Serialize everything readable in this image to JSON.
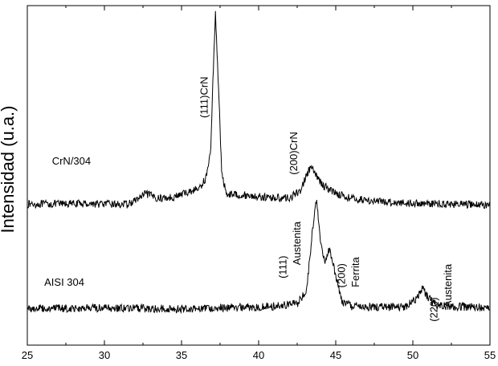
{
  "chart_data": {
    "type": "line",
    "title": "",
    "xlabel": "",
    "ylabel": "Intensidad (u.a.)",
    "xlim": [
      25,
      55
    ],
    "ylim": [
      0,
      100
    ],
    "x_ticks": [
      25,
      30,
      35,
      40,
      45,
      50,
      55
    ],
    "x_tick_labels": [
      "25",
      "30",
      "35",
      "40",
      "45",
      "50",
      "55"
    ],
    "y_ticks_labeled": false,
    "grid": false,
    "legend": "none",
    "line_color": "#000000",
    "series": [
      {
        "name": "CrN/304",
        "label_at": [
          26.6,
          53.2
        ],
        "points": [
          [
            25,
            41.5
          ],
          [
            29,
            41.7
          ],
          [
            31.5,
            41.4
          ],
          [
            32,
            42.6
          ],
          [
            32.7,
            44.6
          ],
          [
            33.5,
            43.2
          ],
          [
            34.5,
            43.6
          ],
          [
            35.5,
            45.2
          ],
          [
            36.2,
            46.3
          ],
          [
            36.6,
            49.5
          ],
          [
            36.9,
            57.5
          ],
          [
            37.05,
            80
          ],
          [
            37.2,
            98
          ],
          [
            37.4,
            76
          ],
          [
            37.6,
            51
          ],
          [
            37.9,
            44.6
          ],
          [
            39,
            44.2
          ],
          [
            40.5,
            43.5
          ],
          [
            42,
            43.3
          ],
          [
            42.7,
            45.5
          ],
          [
            43.1,
            50
          ],
          [
            43.4,
            52.5
          ],
          [
            43.7,
            50
          ],
          [
            44.2,
            47
          ],
          [
            45,
            44.8
          ],
          [
            46,
            43.2
          ],
          [
            47,
            42.7
          ],
          [
            48,
            42.2
          ],
          [
            50,
            41.8
          ],
          [
            52,
            41.6
          ],
          [
            55,
            41.3
          ]
        ],
        "noise": 0.7
      },
      {
        "name": "AISI 304",
        "label_at": [
          26.1,
          17.5
        ],
        "points": [
          [
            25,
            10.8
          ],
          [
            30,
            10.9
          ],
          [
            35,
            10.7
          ],
          [
            38,
            11.1
          ],
          [
            41,
            11.4
          ],
          [
            42.5,
            12.2
          ],
          [
            43.1,
            16
          ],
          [
            43.5,
            34
          ],
          [
            43.75,
            43
          ],
          [
            44.0,
            31.5
          ],
          [
            44.3,
            24
          ],
          [
            44.6,
            28.5
          ],
          [
            44.9,
            22.5
          ],
          [
            45.4,
            12.8
          ],
          [
            46,
            11.5
          ],
          [
            47.5,
            11.2
          ],
          [
            49.5,
            11.4
          ],
          [
            50.2,
            13.4
          ],
          [
            50.6,
            16.8
          ],
          [
            51.0,
            13.8
          ],
          [
            51.6,
            11.6
          ],
          [
            53,
            11.3
          ],
          [
            55,
            11.1
          ]
        ],
        "noise": 0.75
      }
    ],
    "annotations": [
      {
        "text": "(111)CrN",
        "x": 36.7,
        "y": 73,
        "rotate": -90
      },
      {
        "text": "(200)CrN",
        "x": 42.5,
        "y": 56.5,
        "rotate": -90
      },
      {
        "text": "(111)",
        "x": 41.8,
        "y": 23,
        "rotate": -90
      },
      {
        "text": "Austenita",
        "x": 42.7,
        "y": 30,
        "rotate": -90
      },
      {
        "text": "(200)",
        "x": 45.6,
        "y": 20.5,
        "rotate": -90
      },
      {
        "text": "Ferrita",
        "x": 46.5,
        "y": 21.5,
        "rotate": -90
      },
      {
        "text": "(220)",
        "x": 51.6,
        "y": 10.5,
        "rotate": -90
      },
      {
        "text": "Austenita",
        "x": 52.5,
        "y": 17.5,
        "rotate": -90
      }
    ]
  }
}
